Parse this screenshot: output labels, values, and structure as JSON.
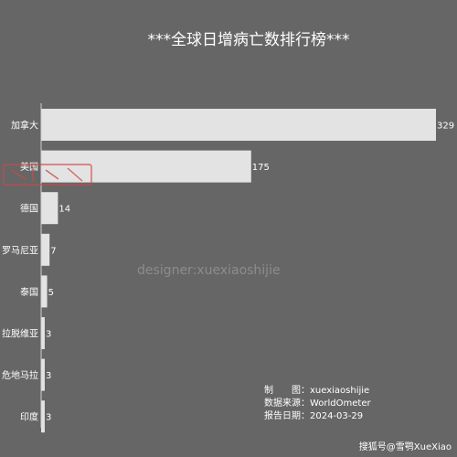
{
  "chart_data": {
    "type": "bar",
    "orientation": "horizontal",
    "title": "***全球日增病亡数排行榜***",
    "categories": [
      "加拿大",
      "美国",
      "德国",
      "罗马尼亚",
      "泰国",
      "拉脱维亚",
      "危地马拉",
      "印度"
    ],
    "values": [
      329,
      175,
      14,
      7,
      5,
      3,
      3,
      3
    ],
    "xlim": [
      0,
      329
    ],
    "grid": false,
    "bar_color": "#e3e3e3",
    "background_color": "#666666"
  },
  "watermark": "designer:xuexiaoshijie",
  "notes": {
    "maker": "制　　图：xuexiaoshijie",
    "source": "数据来源：WorldOmeter",
    "date": "报告日期：2024-03-29"
  },
  "corner_mark": "搜狐号@雪鹗XueXiao"
}
